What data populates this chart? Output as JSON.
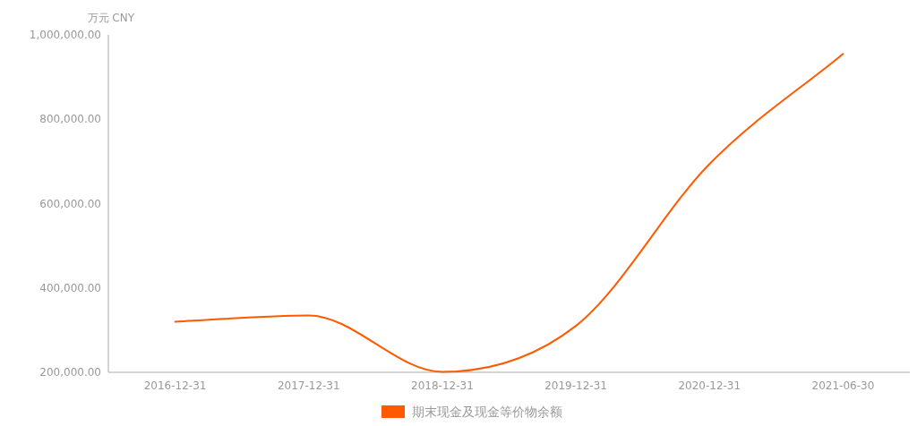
{
  "chart_data": {
    "type": "line",
    "ylabel": "万元  CNY",
    "categories": [
      "2016-12-31",
      "2017-12-31",
      "2018-12-31",
      "2019-12-31",
      "2020-12-31",
      "2021-06-30"
    ],
    "series": [
      {
        "name": "期末现金及现金等价物余额",
        "color": "#ff5a00",
        "values": [
          320000,
          335000,
          201000,
          310000,
          694000,
          955000
        ]
      }
    ],
    "ylim": [
      200000,
      1000000
    ],
    "yticks": [
      {
        "value": 200000,
        "label": "200,000.00"
      },
      {
        "value": 400000,
        "label": "400,000.00"
      },
      {
        "value": 600000,
        "label": "600,000.00"
      },
      {
        "value": 800000,
        "label": "800,000.00"
      },
      {
        "value": 1000000,
        "label": "1,000,000.00"
      }
    ],
    "grid": false,
    "legend": "bottom",
    "marker": "none",
    "line_style": "solid"
  }
}
